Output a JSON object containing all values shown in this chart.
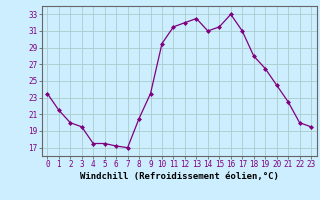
{
  "x": [
    0,
    1,
    2,
    3,
    4,
    5,
    6,
    7,
    8,
    9,
    10,
    11,
    12,
    13,
    14,
    15,
    16,
    17,
    18,
    19,
    20,
    21,
    22,
    23
  ],
  "y": [
    23.5,
    21.5,
    20.0,
    19.5,
    17.5,
    17.5,
    17.2,
    17.0,
    20.5,
    23.5,
    29.5,
    31.5,
    32.0,
    32.5,
    31.0,
    31.5,
    33.0,
    31.0,
    28.0,
    26.5,
    24.5,
    22.5,
    20.0,
    19.5
  ],
  "xlabel": "Windchill (Refroidissement éolien,°C)",
  "ylim": [
    16,
    34
  ],
  "xlim": [
    -0.5,
    23.5
  ],
  "yticks": [
    17,
    19,
    21,
    23,
    25,
    27,
    29,
    31,
    33
  ],
  "xticks": [
    0,
    1,
    2,
    3,
    4,
    5,
    6,
    7,
    8,
    9,
    10,
    11,
    12,
    13,
    14,
    15,
    16,
    17,
    18,
    19,
    20,
    21,
    22,
    23
  ],
  "line_color": "#800080",
  "marker": "D",
  "marker_size": 2.0,
  "bg_color": "#cceeff",
  "grid_color": "#aacccc",
  "xlabel_fontsize": 6.5,
  "tick_fontsize": 5.5,
  "linewidth": 0.9
}
